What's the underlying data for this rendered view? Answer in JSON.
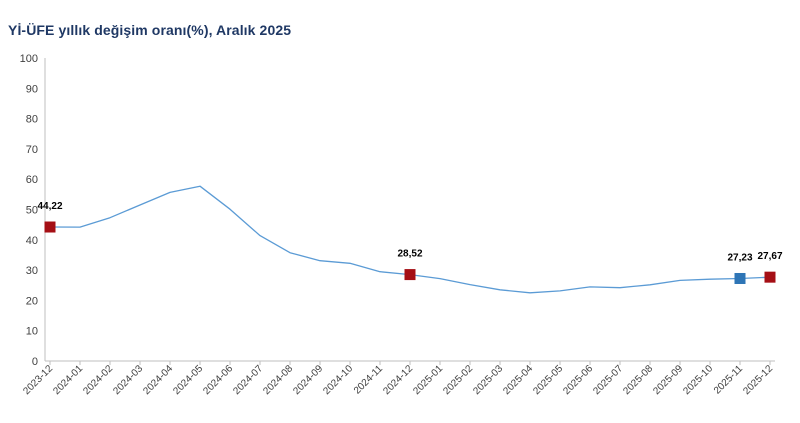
{
  "title": "Yİ-ÜFE yıllık değişim oranı(%), Aralık 2025",
  "chart_data": {
    "type": "line",
    "title": "Yİ-ÜFE yıllık değişim oranı(%), Aralık 2025",
    "xlabel": "",
    "ylabel": "",
    "ylim": [
      0,
      100
    ],
    "yticks": [
      0,
      10,
      20,
      30,
      40,
      50,
      60,
      70,
      80,
      90,
      100
    ],
    "grid": false,
    "legend": "none",
    "categories": [
      "2023-12",
      "2024-01",
      "2024-02",
      "2024-03",
      "2024-04",
      "2024-05",
      "2024-06",
      "2024-07",
      "2024-08",
      "2024-09",
      "2024-10",
      "2024-11",
      "2024-12",
      "2025-01",
      "2025-02",
      "2025-03",
      "2025-04",
      "2025-05",
      "2025-06",
      "2025-07",
      "2025-08",
      "2025-09",
      "2025-10",
      "2025-11",
      "2025-12"
    ],
    "series": [
      {
        "values": [
          44.22,
          44.2,
          47.29,
          51.47,
          55.66,
          57.68,
          50.09,
          41.37,
          35.75,
          33.09,
          32.24,
          29.47,
          28.52,
          27.2,
          25.21,
          23.5,
          22.5,
          23.13,
          24.45,
          24.19,
          25.16,
          26.59,
          27.0,
          27.23,
          27.67
        ],
        "color": "#5b9bd5"
      }
    ],
    "highlighted_points": [
      {
        "category": "2023-12",
        "value": 44.22,
        "label": "44,22",
        "color": "#a50f15"
      },
      {
        "category": "2024-12",
        "value": 28.52,
        "label": "28,52",
        "color": "#a50f15"
      },
      {
        "category": "2025-11",
        "value": 27.23,
        "label": "27,23",
        "color": "#2e75b6"
      },
      {
        "category": "2025-12",
        "value": 27.67,
        "label": "27,67",
        "color": "#a50f15"
      }
    ]
  }
}
